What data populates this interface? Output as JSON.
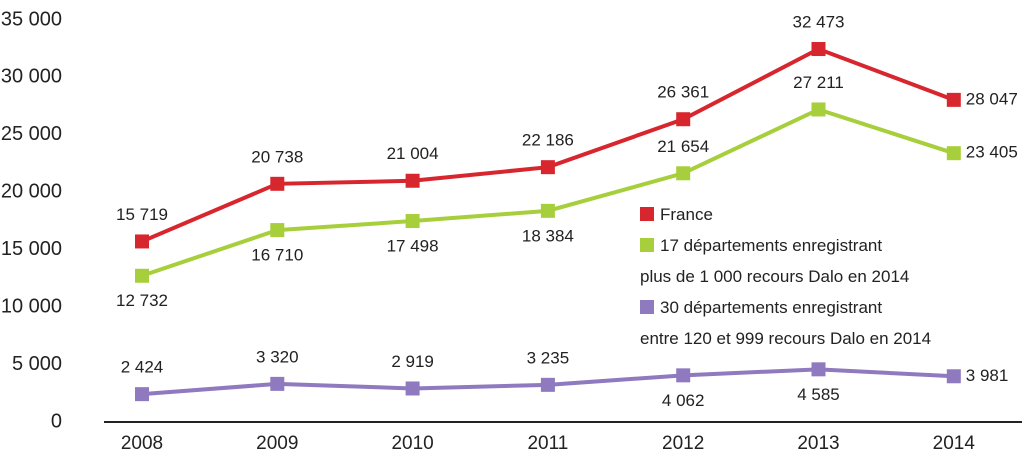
{
  "chart_data": {
    "type": "line",
    "categories": [
      "2008",
      "2009",
      "2010",
      "2011",
      "2012",
      "2013",
      "2014"
    ],
    "series": [
      {
        "name": "France",
        "color": "#d7262e",
        "values": [
          15719,
          20738,
          21004,
          22186,
          26361,
          32473,
          28047
        ],
        "value_labels": [
          "15 719",
          "20 738",
          "21 004",
          "22 186",
          "26 361",
          "32 473",
          "28 047"
        ]
      },
      {
        "name": "17 départements enregistrant\nplus de 1 000 recours Dalo en 2014",
        "color": "#a6cf3b",
        "values": [
          12732,
          16710,
          17498,
          18384,
          21654,
          27211,
          23405
        ],
        "value_labels": [
          "12 732",
          "16 710",
          "17 498",
          "18 384",
          "21 654",
          "27 211",
          "23 405"
        ]
      },
      {
        "name": "30 départements enregistrant\nentre 120 et 999 recours Dalo en 2014",
        "color": "#8f79bf",
        "values": [
          2424,
          3320,
          2919,
          3235,
          4062,
          4585,
          3981
        ],
        "value_labels": [
          "2 424",
          "3 320",
          "2 919",
          "3 235",
          "4 062",
          "4 585",
          "3 981"
        ]
      }
    ],
    "ylim": [
      0,
      35000
    ],
    "yticks": [
      0,
      {
        "value": 5000,
        "label": "5 000"
      },
      {
        "value": 10000,
        "label": "10 000"
      },
      {
        "value": 15000,
        "label": "15 000"
      },
      {
        "value": 20000,
        "label": "20 000"
      },
      {
        "value": 25000,
        "label": "25 000"
      },
      {
        "value": 30000,
        "label": "30 000"
      },
      {
        "value": 35000,
        "label": "35 000"
      }
    ],
    "grid": false
  }
}
